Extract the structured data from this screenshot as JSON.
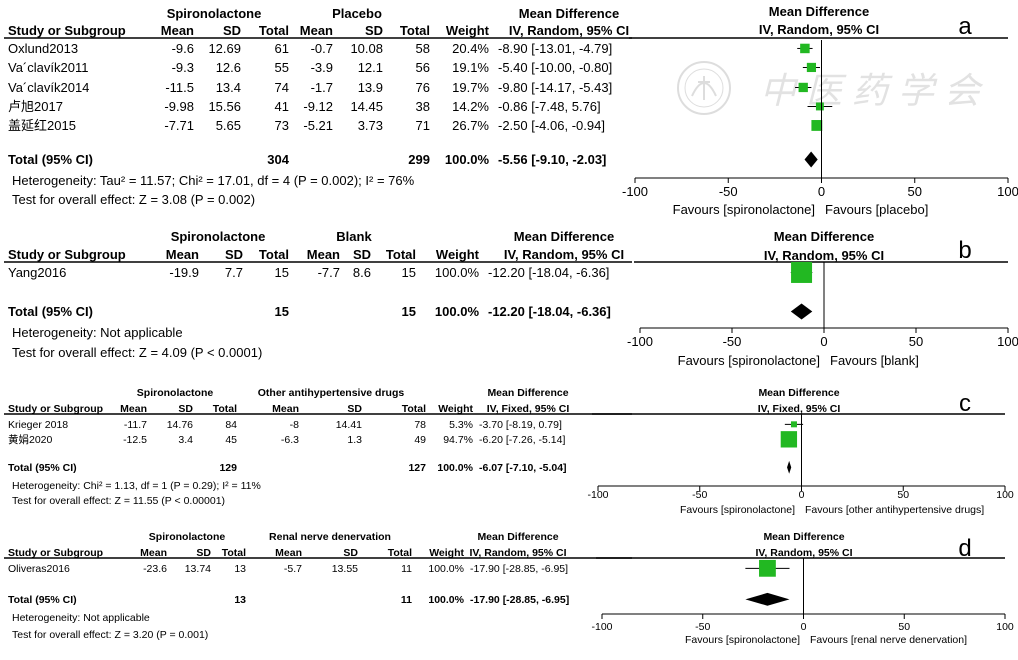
{
  "watermark": {
    "text": "中 医 药 学 会",
    "emblem": "society-seal-emblem"
  },
  "colors": {
    "box": "#22b822",
    "diamond": "#000000",
    "line": "#000000"
  },
  "chart_data": [
    {
      "type": "forest-plot",
      "panel_label": "a",
      "groups": {
        "treatment": "Spironolactone",
        "control": "Placebo"
      },
      "headers": {
        "study": "Study or Subgroup",
        "mean": "Mean",
        "sd": "SD",
        "total": "Total",
        "weight": "Weight",
        "md_title": "Mean Difference",
        "md_method": "IV, Random, 95% CI",
        "plot_title": "Mean Difference",
        "plot_method": "IV, Random, 95% CI"
      },
      "studies": [
        {
          "name": "Oxlund2013",
          "t_mean": "-9.6",
          "t_sd": "12.69",
          "t_total": "61",
          "c_mean": "-0.7",
          "c_sd": "10.08",
          "c_total": "58",
          "weight": "20.4%",
          "ci_text": "-8.90 [-13.01, -4.79]",
          "md": -8.9,
          "lo": -13.01,
          "hi": -4.79,
          "w": 20.4
        },
        {
          "name": "Va´clavík2011",
          "t_mean": "-9.3",
          "t_sd": "12.6",
          "t_total": "55",
          "c_mean": "-3.9",
          "c_sd": "12.1",
          "c_total": "56",
          "weight": "19.1%",
          "ci_text": "-5.40 [-10.00, -0.80]",
          "md": -5.4,
          "lo": -10.0,
          "hi": -0.8,
          "w": 19.1
        },
        {
          "name": "Va´clavík2014",
          "t_mean": "-11.5",
          "t_sd": "13.4",
          "t_total": "74",
          "c_mean": "-1.7",
          "c_sd": "13.9",
          "c_total": "76",
          "weight": "19.7%",
          "ci_text": "-9.80 [-14.17, -5.43]",
          "md": -9.8,
          "lo": -14.17,
          "hi": -5.43,
          "w": 19.7
        },
        {
          "name": "卢旭2017",
          "t_mean": "-9.98",
          "t_sd": "15.56",
          "t_total": "41",
          "c_mean": "-9.12",
          "c_sd": "14.45",
          "c_total": "38",
          "weight": "14.2%",
          "ci_text": "-0.86 [-7.48, 5.76]",
          "md": -0.86,
          "lo": -7.48,
          "hi": 5.76,
          "w": 14.2
        },
        {
          "name": "盖延红2015",
          "t_mean": "-7.71",
          "t_sd": "5.65",
          "t_total": "73",
          "c_mean": "-5.21",
          "c_sd": "3.73",
          "c_total": "71",
          "weight": "26.7%",
          "ci_text": "-2.50 [-4.06, -0.94]",
          "md": -2.5,
          "lo": -4.06,
          "hi": -0.94,
          "w": 26.7
        }
      ],
      "total": {
        "label": "Total (95% CI)",
        "t_total": "304",
        "c_total": "299",
        "weight": "100.0%",
        "ci_text": "-5.56 [-9.10, -2.03]",
        "md": -5.56,
        "lo": -9.1,
        "hi": -2.03
      },
      "heterogeneity": "Heterogeneity: Tau² = 11.57; Chi² = 17.01, df = 4 (P = 0.002); I² = 76%",
      "overall": "Test for overall effect: Z = 3.08 (P = 0.002)",
      "xlim": [
        -100,
        100
      ],
      "ticks": [
        "-100",
        "-50",
        "0",
        "50",
        "100"
      ],
      "favours_left": "Favours [spironolactone]",
      "favours_right": "Favours [placebo]"
    },
    {
      "type": "forest-plot",
      "panel_label": "b",
      "groups": {
        "treatment": "Spironolactone",
        "control": "Blank"
      },
      "headers": {
        "study": "Study or Subgroup",
        "mean": "Mean",
        "sd": "SD",
        "total": "Total",
        "weight": "Weight",
        "md_title": "Mean Difference",
        "md_method": "IV, Random, 95% CI",
        "plot_title": "Mean Difference",
        "plot_method": "IV, Random, 95% CI"
      },
      "studies": [
        {
          "name": "Yang2016",
          "t_mean": "-19.9",
          "t_sd": "7.7",
          "t_total": "15",
          "c_mean": "-7.7",
          "c_sd": "8.6",
          "c_total": "15",
          "weight": "100.0%",
          "ci_text": "-12.20 [-18.04, -6.36]",
          "md": -12.2,
          "lo": -18.04,
          "hi": -6.36,
          "w": 100.0
        }
      ],
      "total": {
        "label": "Total (95% CI)",
        "t_total": "15",
        "c_total": "15",
        "weight": "100.0%",
        "ci_text": "-12.20 [-18.04, -6.36]",
        "md": -12.2,
        "lo": -18.04,
        "hi": -6.36
      },
      "heterogeneity": "Heterogeneity: Not applicable",
      "overall": "Test for overall effect: Z = 4.09 (P < 0.0001)",
      "xlim": [
        -100,
        100
      ],
      "ticks": [
        "-100",
        "-50",
        "0",
        "50",
        "100"
      ],
      "favours_left": "Favours [spironolactone]",
      "favours_right": "Favours [blank]"
    },
    {
      "type": "forest-plot",
      "panel_label": "c",
      "groups": {
        "treatment": "Spironolactone",
        "control": "Other antihypertensive drugs"
      },
      "headers": {
        "study": "Study or Subgroup",
        "mean": "Mean",
        "sd": "SD",
        "total": "Total",
        "weight": "Weight",
        "md_title": "Mean Difference",
        "md_method": "IV, Fixed, 95% CI",
        "plot_title": "Mean Difference",
        "plot_method": "IV, Fixed, 95% CI"
      },
      "studies": [
        {
          "name": "Krieger 2018",
          "t_mean": "-11.7",
          "t_sd": "14.76",
          "t_total": "84",
          "c_mean": "-8",
          "c_sd": "14.41",
          "c_total": "78",
          "weight": "5.3%",
          "ci_text": "-3.70 [-8.19, 0.79]",
          "md": -3.7,
          "lo": -8.19,
          "hi": 0.79,
          "w": 5.3
        },
        {
          "name": "黄娟2020",
          "t_mean": "-12.5",
          "t_sd": "3.4",
          "t_total": "45",
          "c_mean": "-6.3",
          "c_sd": "1.3",
          "c_total": "49",
          "weight": "94.7%",
          "ci_text": "-6.20 [-7.26, -5.14]",
          "md": -6.2,
          "lo": -7.26,
          "hi": -5.14,
          "w": 94.7
        }
      ],
      "total": {
        "label": "Total (95% CI)",
        "t_total": "129",
        "c_total": "127",
        "weight": "100.0%",
        "ci_text": "-6.07 [-7.10, -5.04]",
        "md": -6.07,
        "lo": -7.1,
        "hi": -5.04
      },
      "heterogeneity": "Heterogeneity: Chi² = 1.13, df = 1 (P = 0.29); I² = 11%",
      "overall": "Test for overall effect: Z = 11.55 (P < 0.00001)",
      "xlim": [
        -100,
        100
      ],
      "ticks": [
        "-100",
        "-50",
        "0",
        "50",
        "100"
      ],
      "favours_left": "Favours [spironolactone]",
      "favours_right": "Favours [other antihypertensive drugs]"
    },
    {
      "type": "forest-plot",
      "panel_label": "d",
      "groups": {
        "treatment": "Spironolactone",
        "control": "Renal nerve denervation"
      },
      "headers": {
        "study": "Study or Subgroup",
        "mean": "Mean",
        "sd": "SD",
        "total": "Total",
        "weight": "Weight",
        "md_title": "Mean Difference",
        "md_method": "IV, Random, 95% CI",
        "plot_title": "Mean Difference",
        "plot_method": "IV, Random, 95% CI"
      },
      "studies": [
        {
          "name": "Oliveras2016",
          "t_mean": "-23.6",
          "t_sd": "13.74",
          "t_total": "13",
          "c_mean": "-5.7",
          "c_sd": "13.55",
          "c_total": "11",
          "weight": "100.0%",
          "ci_text": "-17.90 [-28.85, -6.95]",
          "md": -17.9,
          "lo": -28.85,
          "hi": -6.95,
          "w": 100.0
        }
      ],
      "total": {
        "label": "Total (95% CI)",
        "t_total": "13",
        "c_total": "11",
        "weight": "100.0%",
        "ci_text": "-17.90 [-28.85, -6.95]",
        "md": -17.9,
        "lo": -28.85,
        "hi": -6.95
      },
      "heterogeneity": "Heterogeneity: Not applicable",
      "overall": "Test for overall effect: Z = 3.20 (P = 0.001)",
      "xlim": [
        -100,
        100
      ],
      "ticks": [
        "-100",
        "-50",
        "0",
        "50",
        "100"
      ],
      "favours_left": "Favours [spironolactone]",
      "favours_right": "Favours [renal nerve denervation]"
    }
  ]
}
